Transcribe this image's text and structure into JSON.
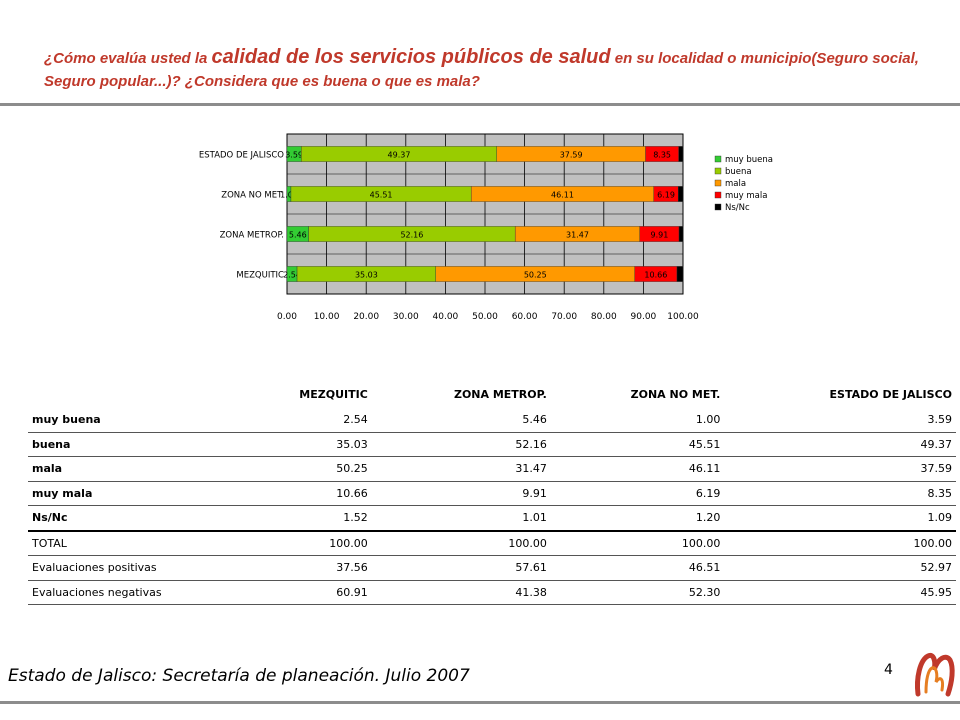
{
  "title": {
    "part1": "¿Cómo evalúa usted la ",
    "part2": "calidad de los servicios públicos de salud",
    "part3": " en su localidad o municipio(Seguro social, Seguro popular...)? ¿Considera que es buena o que es mala?"
  },
  "colors": {
    "muy buena": "#33cc33",
    "buena": "#99cc00",
    "mala": "#ff9900",
    "muy mala": "#ff0000",
    "Ns/Nc": "#000000",
    "plot_bg": "#c0c0c0",
    "title_red": "#c0392b"
  },
  "chart_data": {
    "type": "bar",
    "orientation": "horizontal",
    "stacked": true,
    "categories": [
      "MEZQUITIC",
      "ZONA METROP.",
      "ZONA NO MET.",
      "ESTADO DE JALISCO"
    ],
    "series": [
      {
        "name": "muy buena",
        "values": [
          2.54,
          5.46,
          1.0,
          3.59
        ]
      },
      {
        "name": "buena",
        "values": [
          35.03,
          52.16,
          45.51,
          49.37
        ]
      },
      {
        "name": "mala",
        "values": [
          50.25,
          31.47,
          46.11,
          37.59
        ]
      },
      {
        "name": "muy mala",
        "values": [
          10.66,
          9.91,
          6.19,
          8.35
        ]
      },
      {
        "name": "Ns/Nc",
        "values": [
          1.52,
          1.01,
          1.2,
          1.09
        ]
      }
    ],
    "xlim": [
      0,
      100
    ],
    "xticks": [
      "0.00",
      "10.00",
      "20.00",
      "30.00",
      "40.00",
      "50.00",
      "60.00",
      "70.00",
      "80.00",
      "90.00",
      "100.00"
    ],
    "legend_position": "right",
    "grid": true
  },
  "table": {
    "headers": [
      "",
      "MEZQUITIC",
      "ZONA METROP.",
      "ZONA NO MET.",
      "ESTADO DE JALISCO"
    ],
    "rows": [
      {
        "label": "muy buena",
        "values": [
          "2.54",
          "5.46",
          "1.00",
          "3.59"
        ]
      },
      {
        "label": "buena",
        "values": [
          "35.03",
          "52.16",
          "45.51",
          "49.37"
        ]
      },
      {
        "label": "mala",
        "values": [
          "50.25",
          "31.47",
          "46.11",
          "37.59"
        ]
      },
      {
        "label": "muy mala",
        "values": [
          "10.66",
          "9.91",
          "6.19",
          "8.35"
        ]
      },
      {
        "label": "Ns/Nc",
        "values": [
          "1.52",
          "1.01",
          "1.20",
          "1.09"
        ]
      },
      {
        "label": "TOTAL",
        "values": [
          "100.00",
          "100.00",
          "100.00",
          "100.00"
        ]
      },
      {
        "label": "Evaluaciones positivas",
        "values": [
          "37.56",
          "57.61",
          "46.51",
          "52.97"
        ]
      },
      {
        "label": "Evaluaciones negativas",
        "values": [
          "60.91",
          "41.38",
          "52.30",
          "45.95"
        ]
      }
    ]
  },
  "source": "Estado de Jalisco: Secretaría de planeación. Julio 2007",
  "page_number": "4"
}
